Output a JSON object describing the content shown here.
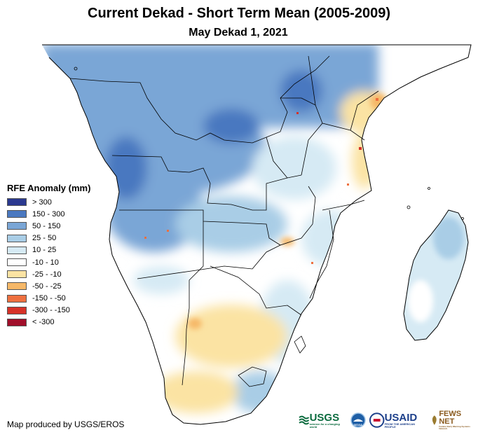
{
  "title": "Current Dekad - Short Term Mean (2005-2009)",
  "subtitle": "May Dekad 1, 2021",
  "legend": {
    "title": "RFE Anomaly (mm)",
    "items": [
      {
        "label": "> 300",
        "color": "#2b3990"
      },
      {
        "label": "150 - 300",
        "color": "#4a78c0"
      },
      {
        "label": "50 - 150",
        "color": "#7aa6d6"
      },
      {
        "label": "25 - 50",
        "color": "#a9cde6"
      },
      {
        "label": "10 - 25",
        "color": "#d6eaf4"
      },
      {
        "label": "-10 - 10",
        "color": "#ffffff"
      },
      {
        "label": "-25 - -10",
        "color": "#fbe3a3"
      },
      {
        "label": "-50 - -25",
        "color": "#f6b868"
      },
      {
        "label": "-150 - -50",
        "color": "#ee7040"
      },
      {
        "label": "-300 - -150",
        "color": "#d63228"
      },
      {
        "label": "< -300",
        "color": "#a00f2a"
      }
    ]
  },
  "credit": "Map produced by USGS/EROS",
  "logos": {
    "usgs": "USGS",
    "usgs_tagline": "science for a changing world",
    "noaa": "NOAA",
    "usaid": "USAID",
    "usaid_tagline": "FROM THE AMERICAN PEOPLE",
    "fewsnet": "FEWS NET",
    "fewsnet_tagline": "Famine Early Warning Systems Network"
  }
}
